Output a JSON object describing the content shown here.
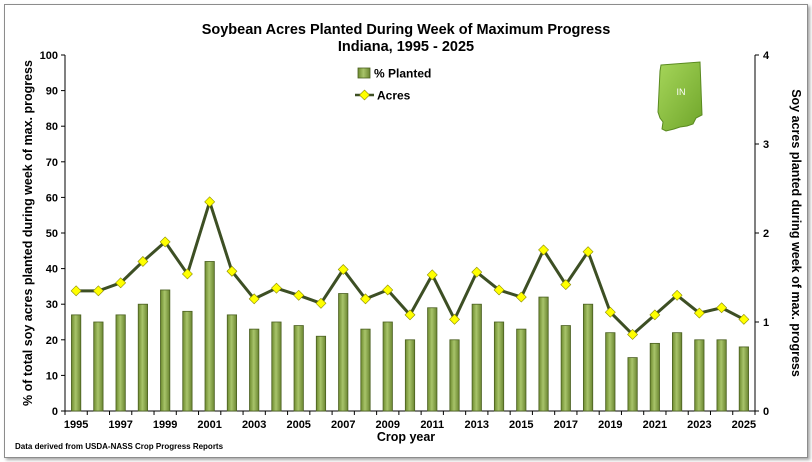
{
  "chart_data": {
    "type": "bar",
    "title": "Soybean Acres Planted During Week of Maximum Progress",
    "subtitle": "Indiana, 1995 - 2025",
    "xlabel": "Crop year",
    "ylabel": "% of total soy acres planted during week of max. progress",
    "y2label": "Soy acres planted during week of max. progress",
    "x_tick_labels": [
      "1995",
      "1997",
      "1999",
      "2001",
      "2003",
      "2005",
      "2007",
      "2009",
      "2011",
      "2013",
      "2015",
      "2017",
      "2019",
      "2021",
      "2023",
      "2025"
    ],
    "ylim": [
      0,
      100
    ],
    "yticks": [
      0,
      10,
      20,
      30,
      40,
      50,
      60,
      70,
      80,
      90,
      100
    ],
    "y2lim": [
      0,
      4
    ],
    "y2ticks": [
      0,
      1,
      2,
      3,
      4
    ],
    "grid": false,
    "legend_position": "top-center",
    "categories": [
      1995,
      1996,
      1997,
      1998,
      1999,
      2000,
      2001,
      2002,
      2003,
      2004,
      2005,
      2006,
      2007,
      2008,
      2009,
      2010,
      2011,
      2012,
      2013,
      2014,
      2015,
      2016,
      2017,
      2018,
      2019,
      2020,
      2021,
      2022,
      2023,
      2024,
      2025
    ],
    "series": [
      {
        "name": "% Planted",
        "type": "bar",
        "axis": "left",
        "color": "#8aa646",
        "values": [
          27,
          25,
          27,
          30,
          34,
          28,
          42,
          27,
          23,
          25,
          24,
          21,
          33,
          23,
          25,
          20,
          29,
          20,
          30,
          25,
          23,
          32,
          24,
          30,
          22,
          15,
          19,
          22,
          20,
          20,
          18
        ]
      },
      {
        "name": "Acres",
        "type": "line",
        "axis": "right",
        "line_color": "#3d4f24",
        "marker_color": "#ffff00",
        "values": [
          1.35,
          1.35,
          1.44,
          1.68,
          1.9,
          1.54,
          2.35,
          1.57,
          1.26,
          1.38,
          1.3,
          1.21,
          1.59,
          1.26,
          1.36,
          1.08,
          1.53,
          1.03,
          1.56,
          1.36,
          1.28,
          1.81,
          1.42,
          1.79,
          1.11,
          0.86,
          1.08,
          1.3,
          1.1,
          1.16,
          1.03
        ]
      }
    ],
    "footnote": "Data derived from USDA-NASS Crop Progress Reports",
    "state_map_label": "IN",
    "state_map_color": "#8cc63f"
  }
}
